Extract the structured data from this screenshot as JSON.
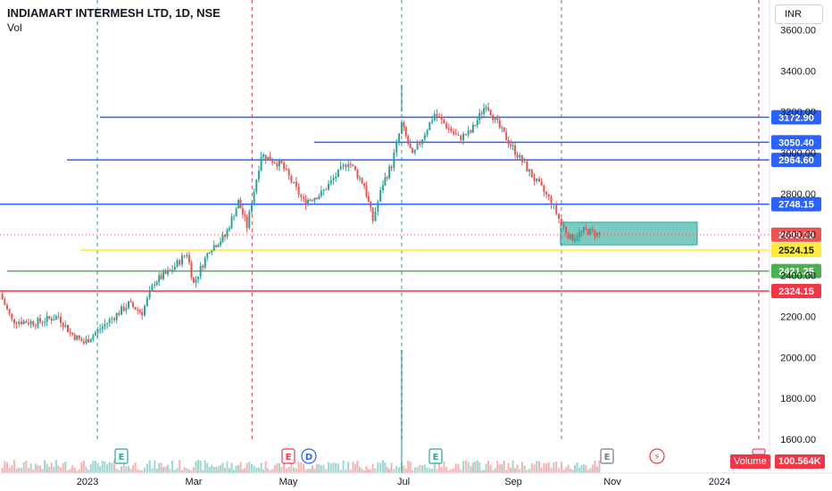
{
  "header": {
    "title": "INDIAMART INTERMESH LTD, 1D, NSE",
    "subtitle": "Vol",
    "currency": "INR"
  },
  "volume_badge": {
    "label": "Volume",
    "value": "100.564K"
  },
  "colors": {
    "up": "#26a69a",
    "down": "#ef5350",
    "blue_level": "#2962ff",
    "yellow_level": "#ffeb3b",
    "green_level": "#4caf50",
    "red_level": "#f23645",
    "event_green": "#26a69a",
    "event_red": "#f23645",
    "event_blue": "#2962ff",
    "event_gray": "#787b86",
    "zone_fill": "#26a69a"
  },
  "chart_data": {
    "type": "candlestick",
    "title": "INDIAMART INTERMESH LTD, 1D, NSE",
    "y_axis": {
      "min": 1550,
      "max": 3650,
      "ticks": [
        "1600.00",
        "1800.00",
        "2000.00",
        "2200.00",
        "2400.00",
        "2600.00",
        "2800.00",
        "3000.00",
        "3200.00",
        "3400.00",
        "3600.00"
      ]
    },
    "x_axis": {
      "ticks": [
        "2023",
        "Mar",
        "May",
        "Jul",
        "Sep",
        "Nov",
        "2024"
      ]
    },
    "levels": [
      {
        "price": 3172.9,
        "label": "3172.90",
        "color": "blue",
        "start": "Jan-15"
      },
      {
        "price": 3050.4,
        "label": "3050.40",
        "color": "blue",
        "start": "May-15"
      },
      {
        "price": 2964.6,
        "label": "2964.60",
        "color": "blue",
        "start": "Dec-15"
      },
      {
        "price": 2748.15,
        "label": "2748.15",
        "color": "blue",
        "start": "Nov-25"
      },
      {
        "price": 2524.15,
        "label": "2524.15",
        "color": "yellow",
        "start": "Dec-10"
      },
      {
        "price": 2421.25,
        "label": "2421.25",
        "color": "green",
        "start": "Nov-20"
      },
      {
        "price": 2324.15,
        "label": "2324.15",
        "color": "red",
        "start": "Nov-25"
      }
    ],
    "last_price": {
      "price": 2599.1,
      "label": "2599.10"
    },
    "zone": {
      "from": "Oct-28",
      "to": "Dec-20",
      "low": 2550,
      "high": 2660
    },
    "events": [
      {
        "date": "Jan-28",
        "kind": "earnings",
        "glyph": "E",
        "color": "green"
      },
      {
        "date": "Apr-28",
        "kind": "earnings",
        "glyph": "E",
        "color": "red"
      },
      {
        "date": "May-08",
        "kind": "dividend",
        "glyph": "D",
        "color": "blue"
      },
      {
        "date": "Jul-25",
        "kind": "earnings",
        "glyph": "E",
        "color": "green"
      },
      {
        "date": "Oct-28",
        "kind": "earnings",
        "glyph": "E",
        "color": "gray"
      },
      {
        "date": "Nov-20",
        "kind": "split",
        "glyph": "⚡",
        "color": "red"
      }
    ],
    "price_path": [
      [
        "Dec-01",
        2310
      ],
      [
        "Dec-08",
        2180
      ],
      [
        "Dec-22",
        2170
      ],
      [
        "Jan-05",
        2200
      ],
      [
        "Jan-12",
        2120
      ],
      [
        "Jan-20",
        2070
      ],
      [
        "Feb-02",
        2160
      ],
      [
        "Feb-16",
        2260
      ],
      [
        "Feb-24",
        2220
      ],
      [
        "Mar-01",
        2370
      ],
      [
        "Mar-10",
        2420
      ],
      [
        "Mar-20",
        2510
      ],
      [
        "Mar-24",
        2360
      ],
      [
        "Apr-03",
        2530
      ],
      [
        "Apr-12",
        2590
      ],
      [
        "Apr-20",
        2760
      ],
      [
        "Apr-25",
        2640
      ],
      [
        "May-03",
        2990
      ],
      [
        "May-15",
        2940
      ],
      [
        "May-28",
        2760
      ],
      [
        "Jun-08",
        2800
      ],
      [
        "Jun-18",
        2900
      ],
      [
        "Jun-24",
        2960
      ],
      [
        "Jul-03",
        2840
      ],
      [
        "Jul-08",
        2670
      ],
      [
        "Jul-14",
        2850
      ],
      [
        "Jul-19",
        2940
      ],
      [
        "Jul-25",
        3140
      ],
      [
        "Aug-01",
        2980
      ],
      [
        "Aug-14",
        3190
      ],
      [
        "Aug-28",
        3070
      ],
      [
        "Sep-05",
        3100
      ],
      [
        "Sep-14",
        3240
      ],
      [
        "Sep-22",
        3120
      ],
      [
        "Oct-02",
        2990
      ],
      [
        "Oct-12",
        2870
      ],
      [
        "Oct-22",
        2760
      ],
      [
        "Oct-28",
        2650
      ],
      [
        "Nov-03",
        2580
      ],
      [
        "Nov-12",
        2620
      ],
      [
        "Nov-20",
        2599
      ]
    ]
  }
}
